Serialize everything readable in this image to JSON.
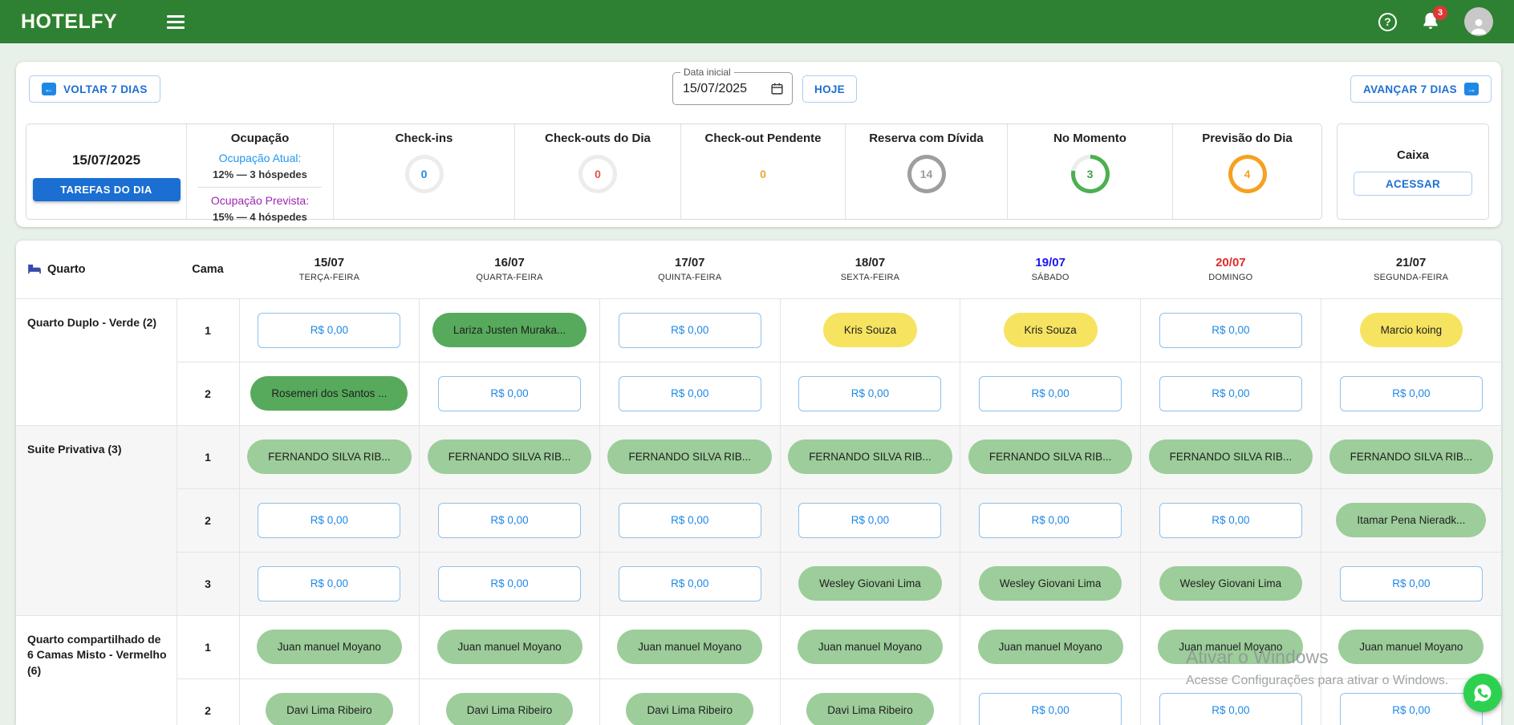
{
  "theme": {
    "navbar_green": "#2e8133",
    "page_bg": "#e8f1e9",
    "accent_blue": "#1e88e5",
    "badge_red": "#e23535",
    "label_blue": "#2196f3",
    "label_purple": "#9c27b0",
    "weekend_sat_blue": "#1a16f0",
    "weekend_sun_red": "#e02b2b",
    "guest_green_dark": "#57aa5c",
    "guest_green_light": "#9ccd9a",
    "guest_yellow": "#f6e360",
    "whatsapp_green": "#2dd14f"
  },
  "navbar": {
    "brand": "HOTELFY",
    "notifications_count": "3"
  },
  "toolbar": {
    "back_label": "VOLTAR 7 DIAS",
    "date_label": "Data inicial",
    "date_value": "15/07/2025",
    "today_label": "HOJE",
    "forward_label": "AVANÇAR 7 DIAS"
  },
  "stats": {
    "cards": [
      {
        "kind": "tasks",
        "date": "15/07/2025",
        "button_label": "TAREFAS DO DIA"
      },
      {
        "kind": "occupancy",
        "title": "Ocupação",
        "current_label": "Ocupação Atual:",
        "current_value": "12% — 3 hóspedes",
        "forecast_label": "Ocupação Prevista:",
        "forecast_value": "15% — 4 hóspedes"
      },
      {
        "kind": "donut",
        "title": "Check-ins",
        "value": "0",
        "value_color": "#1e88e5",
        "ring_color": "#ececec",
        "track_color": "#ececec",
        "ring_pct": 100
      },
      {
        "kind": "donut",
        "title": "Check-outs do Dia",
        "value": "0",
        "value_color": "#e25544",
        "ring_color": "#ececec",
        "track_color": "#ececec",
        "ring_pct": 100
      },
      {
        "kind": "donut",
        "title": "Check-out Pendente",
        "value": "0",
        "value_color": "#f0a431",
        "ring_color": "transparent",
        "track_color": "transparent",
        "ring_pct": 100
      },
      {
        "kind": "donut",
        "title": "Reserva com Dívida",
        "value": "14",
        "value_color": "#9e9e9e",
        "ring_color": "#9e9e9e",
        "track_color": "#9e9e9e",
        "ring_pct": 100
      },
      {
        "kind": "donut",
        "title": "No Momento",
        "value": "3",
        "value_color": "#43a047",
        "ring_color": "#4caf50",
        "track_color": "#ececec",
        "ring_pct": 78
      },
      {
        "kind": "donut",
        "title": "Previsão do Dia",
        "value": "4",
        "value_color": "#f7a021",
        "ring_color": "#f7a021",
        "track_color": "#f7a021",
        "ring_pct": 100
      }
    ],
    "caixa": {
      "title": "Caixa",
      "button_label": "ACESSAR"
    }
  },
  "schedule": {
    "room_header": "Quarto",
    "bed_header": "Cama",
    "price_label": "R$ 0,00",
    "days": [
      {
        "date": "15/07",
        "weekday": "TERÇA-FEIRA",
        "color": "#212121"
      },
      {
        "date": "16/07",
        "weekday": "QUARTA-FEIRA",
        "color": "#212121"
      },
      {
        "date": "17/07",
        "weekday": "QUINTA-FEIRA",
        "color": "#212121"
      },
      {
        "date": "18/07",
        "weekday": "SEXTA-FEIRA",
        "color": "#212121"
      },
      {
        "date": "19/07",
        "weekday": "SÁBADO",
        "color": "#1a16f0"
      },
      {
        "date": "20/07",
        "weekday": "DOMINGO",
        "color": "#e02b2b"
      },
      {
        "date": "21/07",
        "weekday": "SEGUNDA-FEIRA",
        "color": "#212121"
      }
    ],
    "rooms": [
      {
        "name": "Quarto Duplo - Verde (2)",
        "shaded": false,
        "beds": [
          {
            "number": "1",
            "cells": [
              "price",
              "dark|Lariza Justen Muraka...",
              "price",
              "yellow|Kris Souza",
              "yellow|Kris Souza",
              "price",
              "yellow|Marcio koing"
            ]
          },
          {
            "number": "2",
            "cells": [
              "dark|Rosemeri dos Santos ...",
              "price",
              "price",
              "price",
              "price",
              "price",
              "price"
            ]
          }
        ]
      },
      {
        "name": "Suite Privativa (3)",
        "shaded": true,
        "beds": [
          {
            "number": "1",
            "cells": [
              "light|FERNANDO SILVA RIB...",
              "light|FERNANDO SILVA RIB...",
              "light|FERNANDO SILVA RIB...",
              "light|FERNANDO SILVA RIB...",
              "light|FERNANDO SILVA RIB...",
              "light|FERNANDO SILVA RIB...",
              "light|FERNANDO SILVA RIB..."
            ]
          },
          {
            "number": "2",
            "cells": [
              "price",
              "price",
              "price",
              "price",
              "price",
              "price",
              "light|Itamar Pena Nieradk..."
            ]
          },
          {
            "number": "3",
            "cells": [
              "price",
              "price",
              "price",
              "light|Wesley Giovani Lima",
              "light|Wesley Giovani Lima",
              "light|Wesley Giovani Lima",
              "price"
            ]
          }
        ]
      },
      {
        "name": "Quarto compartilhado de 6 Camas Misto - Vermelho (6)",
        "shaded": false,
        "beds": [
          {
            "number": "1",
            "cells": [
              "light|Juan manuel Moyano",
              "light|Juan manuel Moyano",
              "light|Juan manuel Moyano",
              "light|Juan manuel Moyano",
              "light|Juan manuel Moyano",
              "light|Juan manuel Moyano",
              "light|Juan manuel Moyano"
            ]
          },
          {
            "number": "2",
            "cells": [
              "light|Davi Lima Ribeiro",
              "light|Davi Lima Ribeiro",
              "light|Davi Lima Ribeiro",
              "light|Davi Lima Ribeiro",
              "price",
              "price",
              "price"
            ]
          }
        ]
      }
    ]
  },
  "watermark": {
    "line1": "Ativar o Windows",
    "line2": "Acesse Configurações para ativar o Windows."
  }
}
